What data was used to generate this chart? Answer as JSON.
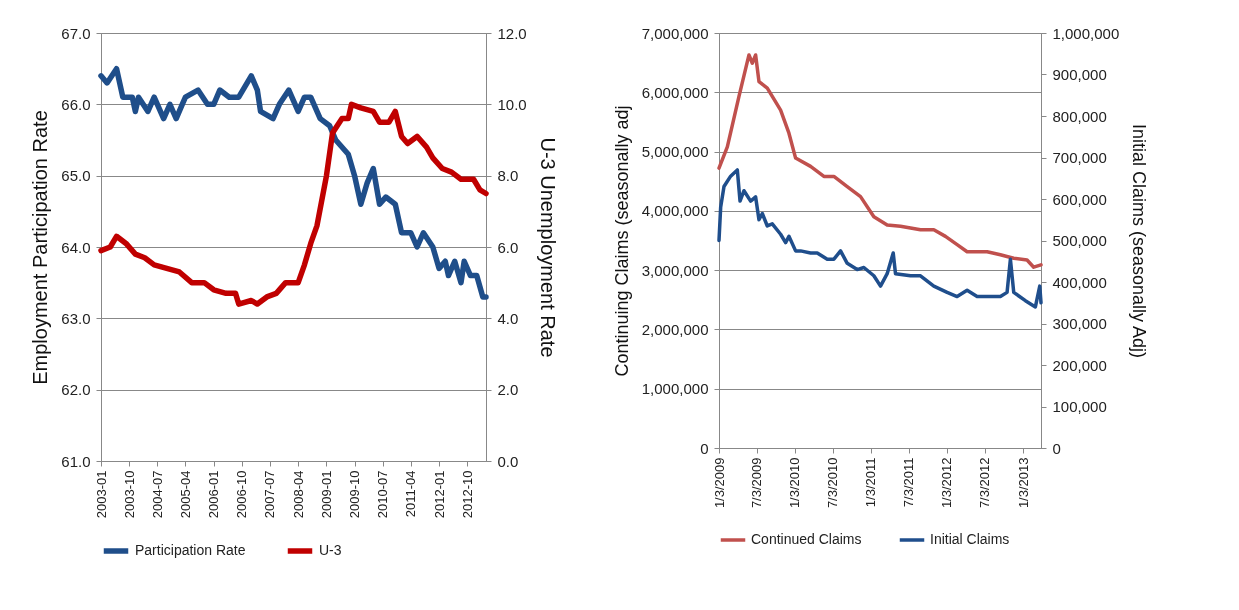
{
  "chart_data": [
    {
      "type": "line",
      "ylabel": "Employment  Participation Rate",
      "y2label": "U-3 Unemployment Rate",
      "xlim": [
        "2003-01",
        "2013-04"
      ],
      "xticks": [
        {
          "value": "2003-01",
          "label": "2003-01"
        },
        {
          "value": "2003-10",
          "label": "2003-10"
        },
        {
          "value": "2004-07",
          "label": "2004-07"
        },
        {
          "value": "2005-04",
          "label": "2005-04"
        },
        {
          "value": "2006-01",
          "label": "2006-01"
        },
        {
          "value": "2006-10",
          "label": "2006-10"
        },
        {
          "value": "2007-07",
          "label": "2007-07"
        },
        {
          "value": "2008-04",
          "label": "2008-04"
        },
        {
          "value": "2009-01",
          "label": "2009-01"
        },
        {
          "value": "2009-10",
          "label": "2009-10"
        },
        {
          "value": "2010-07",
          "label": "2010-07"
        },
        {
          "value": "2011-04",
          "label": "2011-04"
        },
        {
          "value": "2012-01",
          "label": "2012-01"
        },
        {
          "value": "2012-10",
          "label": "2012-10"
        }
      ],
      "ylim": [
        61,
        67
      ],
      "yticks": [
        {
          "value": 61,
          "label": "61.0"
        },
        {
          "value": 62,
          "label": "62.0"
        },
        {
          "value": 63,
          "label": "63.0"
        },
        {
          "value": 64,
          "label": "64.0"
        },
        {
          "value": 65,
          "label": "65.0"
        },
        {
          "value": 66,
          "label": "66.0"
        },
        {
          "value": 67,
          "label": "67.0"
        }
      ],
      "y2lim": [
        0,
        12
      ],
      "y2ticks": [
        {
          "value": 0,
          "label": "0.0"
        },
        {
          "value": 2,
          "label": "2.0"
        },
        {
          "value": 4,
          "label": "4.0"
        },
        {
          "value": 6,
          "label": "6.0"
        },
        {
          "value": 8,
          "label": "8.0"
        },
        {
          "value": 10,
          "label": "10.0"
        },
        {
          "value": 12,
          "label": "12.0"
        }
      ],
      "grid": "y",
      "legend": "bottom",
      "series": [
        {
          "name": "Participation Rate",
          "color": "#1f4e8a",
          "x": [
            "2003-01",
            "2003-03",
            "2003-06",
            "2003-08",
            "2003-11",
            "2003-12",
            "2004-01",
            "2004-04",
            "2004-06",
            "2004-09",
            "2004-11",
            "2005-01",
            "2005-03",
            "2005-04",
            "2005-08",
            "2005-11",
            "2006-01",
            "2006-03",
            "2006-06",
            "2006-09",
            "2007-01",
            "2007-03",
            "2007-04",
            "2007-08",
            "2007-10",
            "2008-01",
            "2008-04",
            "2008-06",
            "2008-08",
            "2008-11",
            "2009-02",
            "2009-04",
            "2009-08",
            "2009-10",
            "2009-12",
            "2010-02",
            "2010-04",
            "2010-06",
            "2010-08",
            "2010-11",
            "2011-01",
            "2011-04",
            "2011-06",
            "2011-08",
            "2011-11",
            "2012-01",
            "2012-03",
            "2012-04",
            "2012-06",
            "2012-08",
            "2012-09",
            "2012-11",
            "2013-01",
            "2013-03",
            "2013-04"
          ],
          "values": [
            66.4,
            66.3,
            66.5,
            66.1,
            66.1,
            65.9,
            66.1,
            65.9,
            66.1,
            65.8,
            66.0,
            65.8,
            66.0,
            66.1,
            66.2,
            66.0,
            66.0,
            66.2,
            66.1,
            66.1,
            66.4,
            66.2,
            65.9,
            65.8,
            66.0,
            66.2,
            65.9,
            66.1,
            66.1,
            65.8,
            65.7,
            65.5,
            65.3,
            65.0,
            64.6,
            64.9,
            65.1,
            64.6,
            64.7,
            64.6,
            64.2,
            64.2,
            64.0,
            64.2,
            64.0,
            63.7,
            63.8,
            63.6,
            63.8,
            63.5,
            63.8,
            63.6,
            63.6,
            63.3,
            63.3
          ]
        },
        {
          "name": "U-3",
          "color": "#c00000",
          "axis": "y2",
          "x": [
            "2003-01",
            "2003-04",
            "2003-06",
            "2003-09",
            "2003-12",
            "2004-03",
            "2004-06",
            "2004-10",
            "2005-02",
            "2005-06",
            "2005-10",
            "2006-01",
            "2006-05",
            "2006-08",
            "2006-09",
            "2007-01",
            "2007-03",
            "2007-06",
            "2007-09",
            "2007-12",
            "2008-04",
            "2008-06",
            "2008-08",
            "2008-10",
            "2009-01",
            "2009-03",
            "2009-06",
            "2009-08",
            "2009-09",
            "2009-12",
            "2010-04",
            "2010-06",
            "2010-09",
            "2010-11",
            "2011-01",
            "2011-03",
            "2011-06",
            "2011-09",
            "2011-11",
            "2012-02",
            "2012-05",
            "2012-08",
            "2012-12",
            "2013-02",
            "2013-04"
          ],
          "values": [
            5.9,
            6.0,
            6.3,
            6.1,
            5.8,
            5.7,
            5.5,
            5.4,
            5.3,
            5.0,
            5.0,
            4.8,
            4.7,
            4.7,
            4.4,
            4.5,
            4.4,
            4.6,
            4.7,
            5.0,
            5.0,
            5.5,
            6.1,
            6.6,
            8.0,
            9.2,
            9.6,
            9.6,
            10.0,
            9.9,
            9.8,
            9.5,
            9.5,
            9.8,
            9.1,
            8.9,
            9.1,
            8.8,
            8.5,
            8.2,
            8.1,
            7.9,
            7.9,
            7.6,
            7.5
          ]
        }
      ]
    },
    {
      "type": "line",
      "ylabel": "Continuing Claims (seasonally adj",
      "y2label": "Initial  Claims (seasonally Adj)",
      "xlim": [
        "2009-01-03",
        "2013-03-30"
      ],
      "xticks": [
        {
          "value": "2009-01-03",
          "label": "1/3/2009"
        },
        {
          "value": "2009-07-03",
          "label": "7/3/2009"
        },
        {
          "value": "2010-01-03",
          "label": "1/3/2010"
        },
        {
          "value": "2010-07-03",
          "label": "7/3/2010"
        },
        {
          "value": "2011-01-03",
          "label": "1/3/2011"
        },
        {
          "value": "2011-07-03",
          "label": "7/3/2011"
        },
        {
          "value": "2012-01-03",
          "label": "1/3/2012"
        },
        {
          "value": "2012-07-03",
          "label": "7/3/2012"
        },
        {
          "value": "2013-01-03",
          "label": "1/3/2013"
        }
      ],
      "ylim": [
        0,
        7000000
      ],
      "yticks": [
        {
          "value": 0,
          "label": "0"
        },
        {
          "value": 1000000,
          "label": "1,000,000"
        },
        {
          "value": 2000000,
          "label": "2,000,000"
        },
        {
          "value": 3000000,
          "label": "3,000,000"
        },
        {
          "value": 4000000,
          "label": "4,000,000"
        },
        {
          "value": 5000000,
          "label": "5,000,000"
        },
        {
          "value": 6000000,
          "label": "6,000,000"
        },
        {
          "value": 7000000,
          "label": "7,000,000"
        }
      ],
      "y2lim": [
        0,
        1000000
      ],
      "y2ticks": [
        {
          "value": 0,
          "label": "0"
        },
        {
          "value": 100000,
          "label": "100,000"
        },
        {
          "value": 200000,
          "label": "200,000"
        },
        {
          "value": 300000,
          "label": "300,000"
        },
        {
          "value": 400000,
          "label": "400,000"
        },
        {
          "value": 500000,
          "label": "500,000"
        },
        {
          "value": 600000,
          "label": "600,000"
        },
        {
          "value": 700000,
          "label": "700,000"
        },
        {
          "value": 800000,
          "label": "800,000"
        },
        {
          "value": 900000,
          "label": "900,000"
        },
        {
          "value": 1000000,
          "label": "1,000,000"
        }
      ],
      "grid": "y",
      "legend": "bottom",
      "series": [
        {
          "name": "Continued Claims",
          "color": "#c0504d",
          "x": [
            "2009-01-03",
            "2009-02-12",
            "2009-04-09",
            "2009-05-27",
            "2009-06-12",
            "2009-06-28",
            "2009-07-14",
            "2009-08-23",
            "2009-09-16",
            "2009-10-26",
            "2009-12-05",
            "2010-01-06",
            "2010-03-19",
            "2010-05-22",
            "2010-07-09",
            "2010-09-11",
            "2010-11-14",
            "2011-01-17",
            "2011-03-22",
            "2011-05-25",
            "2011-08-29",
            "2011-11-01",
            "2011-12-27",
            "2012-02-21",
            "2012-04-09",
            "2012-07-14",
            "2012-09-16",
            "2012-11-19",
            "2013-01-22",
            "2013-02-23",
            "2013-03-30"
          ],
          "values": [
            4720000,
            5080000,
            5930000,
            6630000,
            6490000,
            6630000,
            6180000,
            6070000,
            5930000,
            5700000,
            5310000,
            4890000,
            4750000,
            4580000,
            4580000,
            4410000,
            4240000,
            3900000,
            3760000,
            3740000,
            3680000,
            3680000,
            3570000,
            3430000,
            3310000,
            3310000,
            3260000,
            3200000,
            3170000,
            3050000,
            3090000
          ]
        },
        {
          "name": "Initial Claims",
          "color": "#1f4e8c",
          "axis": "y2",
          "x": [
            "2009-01-03",
            "2009-01-11",
            "2009-01-27",
            "2009-02-28",
            "2009-04-01",
            "2009-04-14",
            "2009-05-03",
            "2009-06-04",
            "2009-06-28",
            "2009-07-14",
            "2009-07-30",
            "2009-08-23",
            "2009-09-16",
            "2009-10-26",
            "2009-11-19",
            "2009-12-05",
            "2010-01-06",
            "2010-01-30",
            "2010-03-19",
            "2010-04-20",
            "2010-06-07",
            "2010-07-09",
            "2010-08-10",
            "2010-09-11",
            "2010-10-29",
            "2010-11-30",
            "2011-01-17",
            "2011-02-18",
            "2011-03-22",
            "2011-04-20",
            "2011-05-01",
            "2011-07-12",
            "2011-08-29",
            "2011-11-01",
            "2012-01-04",
            "2012-02-21",
            "2012-04-09",
            "2012-05-27",
            "2012-07-14",
            "2012-09-16",
            "2012-10-18",
            "2012-11-03",
            "2012-11-19",
            "2013-01-14",
            "2013-03-03",
            "2013-03-24",
            "2013-03-30"
          ],
          "values": [
            500000,
            580000,
            630000,
            655000,
            670000,
            595000,
            620000,
            595000,
            605000,
            550000,
            565000,
            535000,
            540000,
            515000,
            495000,
            510000,
            475000,
            475000,
            470000,
            470000,
            455000,
            455000,
            475000,
            445000,
            430000,
            435000,
            415000,
            390000,
            420000,
            470000,
            420000,
            415000,
            415000,
            390000,
            375000,
            365000,
            380000,
            365000,
            365000,
            365000,
            375000,
            455000,
            375000,
            355000,
            340000,
            390000,
            350000
          ]
        }
      ]
    }
  ]
}
